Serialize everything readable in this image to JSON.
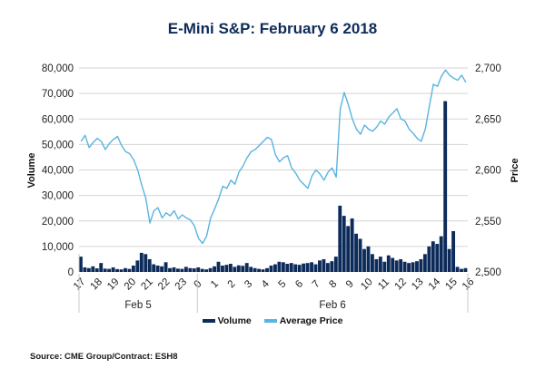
{
  "chart_data": {
    "type": "bar+line",
    "title": "E-Mini S&P: February 6 2018",
    "source": "Source: CME Group/Contract: ESH8",
    "ylabel_left": "Volume",
    "ylabel_right": "Price",
    "ylim_left": [
      0,
      80000
    ],
    "ylim_right": [
      2500,
      2700
    ],
    "yticks_left": [
      "0",
      "10,000",
      "20,000",
      "30,000",
      "40,000",
      "50,000",
      "60,000",
      "70,000",
      "80,000"
    ],
    "yticks_left_values": [
      0,
      10000,
      20000,
      30000,
      40000,
      50000,
      60000,
      70000,
      80000
    ],
    "yticks_right": [
      "2,500",
      "2,550",
      "2,600",
      "2,650",
      "2,700"
    ],
    "yticks_right_values": [
      2500,
      2550,
      2600,
      2650,
      2700
    ],
    "grid": true,
    "x_hour_ticks": [
      "17",
      "18",
      "19",
      "20",
      "21",
      "22",
      "23",
      "0",
      "1",
      "2",
      "3",
      "4",
      "5",
      "6",
      "7",
      "8",
      "9",
      "10",
      "11",
      "12",
      "13",
      "14",
      "15",
      "16"
    ],
    "x_groups": [
      {
        "label": "Feb 5",
        "from_tick": 0,
        "to_tick": 7
      },
      {
        "label": "Feb 6",
        "from_tick": 7,
        "to_tick": 23
      }
    ],
    "legend": [
      {
        "name": "Volume",
        "color": "#0d2b5a"
      },
      {
        "name": "Average Price",
        "color": "#5ab4e0"
      }
    ],
    "legend_position": "bottom",
    "x_resolution_minutes": 15,
    "series": [
      {
        "name": "Average Price",
        "type": "line",
        "color": "#5ab4e0",
        "values": [
          2628,
          2634,
          2622,
          2627,
          2631,
          2628,
          2620,
          2626,
          2630,
          2633,
          2624,
          2618,
          2616,
          2610,
          2600,
          2585,
          2572,
          2548,
          2560,
          2563,
          2553,
          2558,
          2555,
          2560,
          2552,
          2556,
          2553,
          2551,
          2545,
          2533,
          2528,
          2535,
          2553,
          2562,
          2572,
          2584,
          2582,
          2590,
          2586,
          2598,
          2604,
          2612,
          2618,
          2620,
          2624,
          2628,
          2632,
          2630,
          2615,
          2608,
          2612,
          2614,
          2602,
          2597,
          2590,
          2586,
          2582,
          2594,
          2600,
          2596,
          2590,
          2598,
          2602,
          2593,
          2660,
          2676,
          2664,
          2650,
          2640,
          2635,
          2644,
          2640,
          2638,
          2642,
          2648,
          2645,
          2652,
          2656,
          2660,
          2650,
          2648,
          2640,
          2636,
          2631,
          2628,
          2640,
          2662,
          2684,
          2682,
          2692,
          2698,
          2693,
          2690,
          2688,
          2693,
          2686
        ]
      },
      {
        "name": "Volume",
        "type": "bar",
        "color": "#0d2b5a",
        "values": [
          6000,
          1800,
          1500,
          2200,
          1400,
          3500,
          1300,
          1200,
          1800,
          1100,
          1000,
          1500,
          1200,
          2500,
          4500,
          7500,
          7000,
          5000,
          3000,
          2500,
          2200,
          3800,
          1500,
          1800,
          1300,
          1200,
          2000,
          1500,
          1400,
          1800,
          1200,
          1000,
          1500,
          2200,
          4000,
          2500,
          2800,
          3200,
          2000,
          2600,
          2400,
          3500,
          2000,
          1500,
          1200,
          1000,
          1500,
          2500,
          3000,
          4000,
          3800,
          3200,
          3500,
          3000,
          2800,
          3300,
          3500,
          3800,
          3000,
          4500,
          5000,
          3500,
          4200,
          6000,
          26000,
          22000,
          18000,
          21000,
          15000,
          13000,
          9000,
          10000,
          7000,
          5000,
          6000,
          4000,
          6500,
          5500,
          4500,
          5000,
          4000,
          3500,
          3800,
          4200,
          5000,
          7000,
          10000,
          12000,
          11000,
          14000,
          67000,
          9000,
          16000,
          2000,
          1200,
          1500
        ]
      }
    ]
  }
}
